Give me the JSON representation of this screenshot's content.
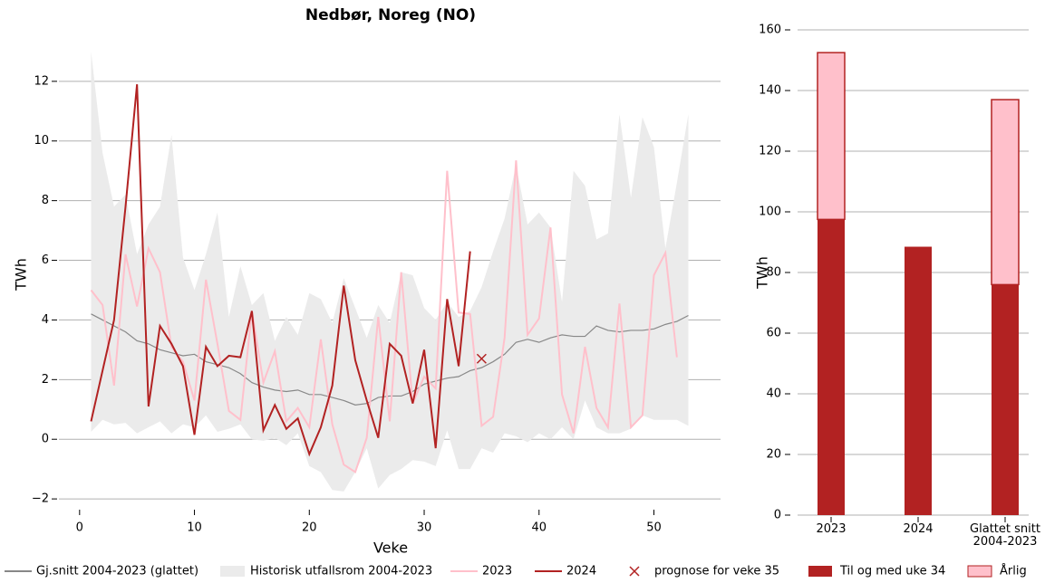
{
  "chart_data": [
    {
      "type": "line",
      "title": "Nedbør, Noreg (NO)",
      "xlabel": "Veke",
      "ylabel": "TWh",
      "x": [
        1,
        2,
        3,
        4,
        5,
        6,
        7,
        8,
        9,
        10,
        11,
        12,
        13,
        14,
        15,
        16,
        17,
        18,
        19,
        20,
        21,
        22,
        23,
        24,
        25,
        26,
        27,
        28,
        29,
        30,
        31,
        32,
        33,
        34,
        35,
        36,
        37,
        38,
        39,
        40,
        41,
        42,
        43,
        44,
        45,
        46,
        47,
        48,
        49,
        50,
        51,
        52,
        53
      ],
      "xlim": [
        -1.8,
        55.8
      ],
      "xticks": [
        0,
        10,
        20,
        30,
        40,
        50
      ],
      "ylim": [
        -2.3,
        13.3
      ],
      "yticks": [
        {
          "value": -2,
          "label": "−2"
        },
        0,
        2,
        4,
        6,
        8,
        10,
        12
      ],
      "grid": true,
      "series": [
        {
          "name": "Gj.snitt 2004-2023 (glattet)",
          "type": "line",
          "color": "#888888",
          "values": [
            4.2,
            4.0,
            3.8,
            3.6,
            3.3,
            3.2,
            3.0,
            2.9,
            2.8,
            2.85,
            2.6,
            2.5,
            2.4,
            2.2,
            1.9,
            1.75,
            1.65,
            1.6,
            1.65,
            1.5,
            1.5,
            1.4,
            1.3,
            1.15,
            1.2,
            1.4,
            1.45,
            1.45,
            1.6,
            1.85,
            1.95,
            2.05,
            2.1,
            2.3,
            2.4,
            2.6,
            2.85,
            3.25,
            3.35,
            3.25,
            3.4,
            3.5,
            3.45,
            3.45,
            3.8,
            3.65,
            3.6,
            3.65,
            3.65,
            3.7,
            3.85,
            3.95,
            4.15
          ]
        },
        {
          "name": "Historisk utfallsrom 2004-2023",
          "type": "band",
          "color": "#ebebeb",
          "high": [
            13,
            9.6,
            7.8,
            8.2,
            6.2,
            7.2,
            7.8,
            10.2,
            6.1,
            5.0,
            6.2,
            7.6,
            4.1,
            5.8,
            4.5,
            4.9,
            3.3,
            4.1,
            3.5,
            4.9,
            4.7,
            3.9,
            5.4,
            4.4,
            3.4,
            4.5,
            3.9,
            5.6,
            5.5,
            4.4,
            4.0,
            4.6,
            4.1,
            4.3,
            5.1,
            6.3,
            7.4,
            9.2,
            7.2,
            7.6,
            7.1,
            4.6,
            9.0,
            8.5,
            6.7,
            6.9,
            10.9,
            8.1,
            10.8,
            9.8,
            6.4,
            8.6,
            10.9
          ],
          "low": [
            0.25,
            0.65,
            0.5,
            0.55,
            0.2,
            0.4,
            0.6,
            0.2,
            0.5,
            0.4,
            0.8,
            0.25,
            0.35,
            0.5,
            0.0,
            -0.05,
            0.05,
            -0.2,
            0.2,
            -0.9,
            -1.1,
            -1.7,
            -1.75,
            -1.1,
            -0.3,
            -1.65,
            -1.2,
            -1.0,
            -0.7,
            -0.75,
            -0.9,
            0.3,
            -1.0,
            -1.0,
            -0.3,
            -0.45,
            0.2,
            0.1,
            -0.1,
            0.2,
            0.0,
            0.4,
            0.0,
            1.3,
            0.4,
            0.2,
            0.2,
            0.35,
            0.8,
            0.65,
            0.65,
            0.65,
            0.45
          ]
        },
        {
          "name": "2023",
          "type": "line",
          "color": "#ffc0cb",
          "values": [
            5.0,
            4.5,
            1.8,
            6.2,
            4.45,
            6.4,
            5.6,
            3.1,
            2.6,
            1.3,
            5.35,
            3.2,
            0.95,
            0.65,
            4.3,
            1.9,
            2.95,
            0.6,
            1.05,
            0.4,
            3.35,
            0.5,
            -0.85,
            -1.1,
            0.05,
            4.1,
            0.6,
            5.6,
            1.2,
            2.1,
            1.7,
            9.0,
            4.25,
            4.2,
            0.45,
            0.75,
            3.4,
            9.35,
            3.5,
            4.05,
            7.1,
            1.5,
            0.2,
            3.1,
            1.05,
            0.4,
            4.55,
            0.4,
            0.8,
            5.5,
            6.25,
            2.75,
            null
          ]
        },
        {
          "name": "2024",
          "type": "line",
          "color": "#b22222",
          "values": [
            0.6,
            2.3,
            4.0,
            7.8,
            11.9,
            1.1,
            3.8,
            3.2,
            2.45,
            0.15,
            3.1,
            2.45,
            2.8,
            2.75,
            4.3,
            0.3,
            1.15,
            0.35,
            0.7,
            -0.5,
            0.4,
            1.8,
            5.15,
            2.65,
            1.3,
            0.05,
            3.2,
            2.8,
            1.2,
            3.0,
            -0.3,
            4.7,
            2.45,
            6.3,
            null,
            null,
            null,
            null,
            null,
            null,
            null,
            null,
            null,
            null,
            null,
            null,
            null,
            null,
            null,
            null,
            null,
            null,
            null
          ]
        },
        {
          "name": "prognose for veke 35",
          "type": "marker",
          "color": "#b22222",
          "x": [
            35
          ],
          "values": [
            2.7
          ]
        }
      ]
    },
    {
      "type": "bar",
      "stacked": true,
      "ylabel": "TWh",
      "categories": [
        "2023",
        "2024",
        "Glattet snitt 2004-2023"
      ],
      "ylim": [
        0,
        160
      ],
      "yticks": [
        0,
        20,
        40,
        60,
        80,
        100,
        120,
        140,
        160
      ],
      "grid": true,
      "series": [
        {
          "name": "Til og med uke 34",
          "color": "#b22222",
          "values": [
            97.5,
            88.5,
            76
          ]
        },
        {
          "name": "Årlig",
          "color": "#ffc0cb",
          "edge": "#b22222",
          "values": [
            55,
            null,
            61
          ]
        }
      ]
    }
  ]
}
